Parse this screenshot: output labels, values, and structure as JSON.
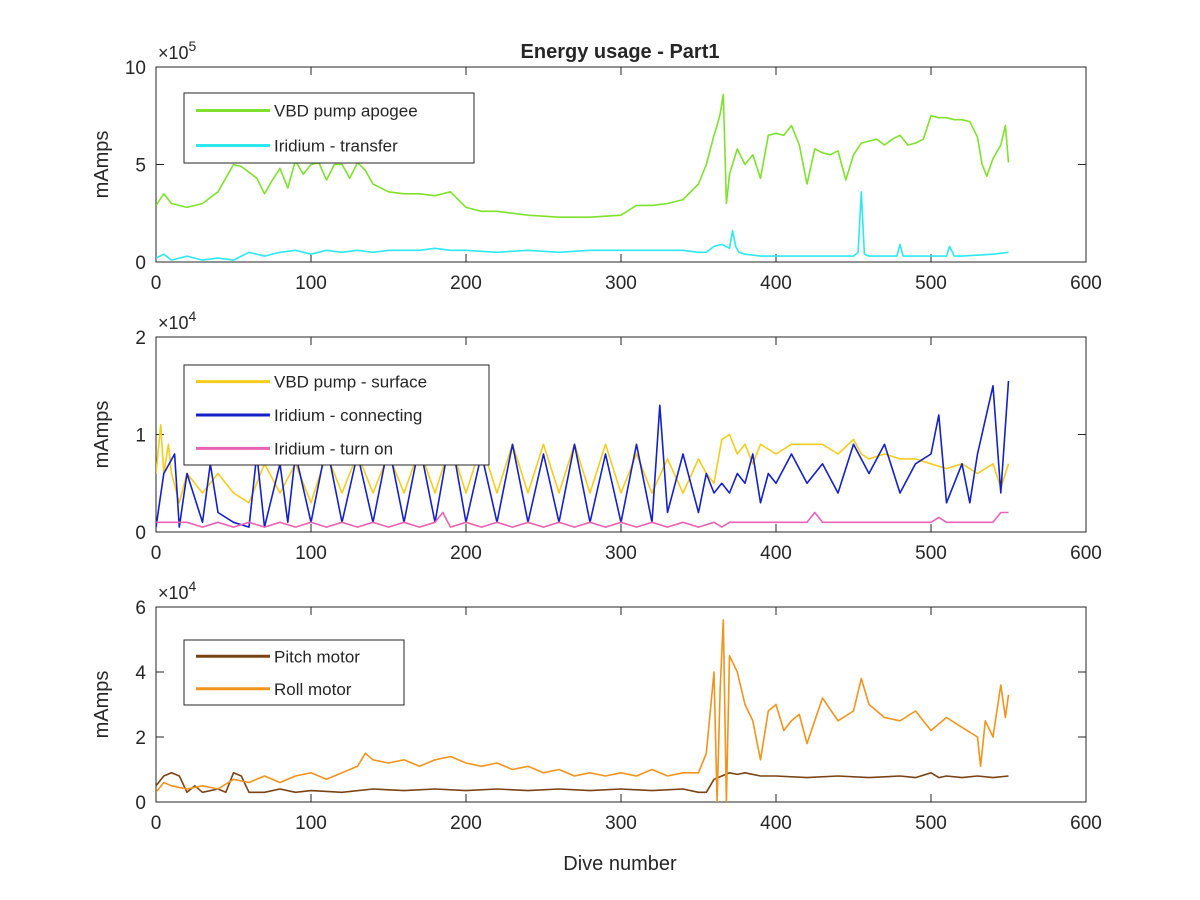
{
  "figure": {
    "title": "Energy usage - Part1",
    "xlabel": "Dive number"
  },
  "chart_data": [
    {
      "type": "line",
      "title": "Energy usage - Part1",
      "xlabel": "",
      "ylabel": "mAmps",
      "exponent_base": "×10",
      "exponent_power": "5",
      "scale": 100000,
      "xlim": [
        0,
        600
      ],
      "ylim": [
        0,
        10
      ],
      "xticks": [
        0,
        100,
        200,
        300,
        400,
        500,
        600
      ],
      "yticks": [
        0,
        5,
        10
      ],
      "legend_position": "top-left",
      "series": [
        {
          "name": "VBD pump apogee",
          "color": "#7fe12d",
          "x": [
            0,
            5,
            10,
            20,
            30,
            40,
            50,
            55,
            60,
            65,
            70,
            75,
            80,
            85,
            90,
            95,
            100,
            105,
            110,
            115,
            120,
            125,
            130,
            135,
            140,
            150,
            160,
            170,
            180,
            190,
            200,
            210,
            220,
            240,
            260,
            280,
            300,
            310,
            320,
            330,
            340,
            350,
            355,
            360,
            362,
            364,
            366,
            368,
            370,
            375,
            380,
            385,
            390,
            395,
            400,
            405,
            410,
            415,
            420,
            425,
            430,
            435,
            440,
            445,
            450,
            455,
            460,
            465,
            470,
            475,
            480,
            485,
            490,
            495,
            500,
            505,
            510,
            515,
            520,
            525,
            530,
            533,
            536,
            540,
            545,
            548,
            550
          ],
          "values": [
            2.9,
            3.5,
            3.0,
            2.8,
            3.0,
            3.6,
            5.0,
            4.9,
            4.6,
            4.3,
            3.5,
            4.2,
            4.8,
            3.8,
            5.2,
            4.5,
            5.0,
            5.1,
            4.2,
            5.0,
            5.0,
            4.3,
            5.1,
            4.7,
            4.0,
            3.6,
            3.5,
            3.5,
            3.4,
            3.6,
            2.8,
            2.6,
            2.6,
            2.4,
            2.3,
            2.3,
            2.4,
            2.9,
            2.9,
            3.0,
            3.2,
            4.0,
            5.0,
            6.5,
            7.0,
            7.6,
            8.6,
            3.0,
            4.5,
            5.8,
            5.0,
            5.5,
            4.3,
            6.5,
            6.6,
            6.5,
            7.0,
            6.0,
            4.0,
            5.8,
            5.6,
            5.5,
            5.7,
            4.2,
            5.5,
            6.1,
            6.2,
            6.3,
            6.0,
            6.3,
            6.5,
            6.0,
            6.1,
            6.3,
            7.5,
            7.4,
            7.4,
            7.3,
            7.3,
            7.2,
            6.4,
            5.0,
            4.4,
            5.3,
            6.0,
            7.0,
            5.1
          ]
        },
        {
          "name": "Iridium - transfer",
          "color": "#2ee8f0",
          "x": [
            0,
            5,
            10,
            20,
            30,
            40,
            50,
            60,
            70,
            80,
            90,
            100,
            110,
            120,
            130,
            140,
            150,
            160,
            170,
            180,
            190,
            200,
            220,
            240,
            260,
            280,
            300,
            320,
            340,
            350,
            355,
            360,
            365,
            370,
            372,
            374,
            376,
            380,
            390,
            400,
            420,
            440,
            450,
            453,
            455,
            457,
            460,
            470,
            478,
            480,
            482,
            490,
            500,
            510,
            512,
            515,
            520,
            540,
            550
          ],
          "values": [
            0.2,
            0.4,
            0.1,
            0.3,
            0.1,
            0.2,
            0.1,
            0.5,
            0.3,
            0.5,
            0.6,
            0.4,
            0.6,
            0.5,
            0.6,
            0.5,
            0.6,
            0.6,
            0.6,
            0.7,
            0.6,
            0.6,
            0.5,
            0.6,
            0.5,
            0.6,
            0.6,
            0.6,
            0.6,
            0.5,
            0.5,
            0.8,
            0.9,
            0.7,
            1.6,
            0.8,
            0.5,
            0.4,
            0.3,
            0.3,
            0.3,
            0.3,
            0.3,
            0.5,
            3.6,
            0.4,
            0.3,
            0.3,
            0.3,
            0.9,
            0.3,
            0.3,
            0.3,
            0.3,
            0.8,
            0.3,
            0.3,
            0.4,
            0.5
          ]
        }
      ]
    },
    {
      "type": "line",
      "title": "",
      "xlabel": "",
      "ylabel": "mAmps",
      "exponent_base": "×10",
      "exponent_power": "4",
      "scale": 10000,
      "xlim": [
        0,
        600
      ],
      "ylim": [
        0,
        2
      ],
      "xticks": [
        0,
        100,
        200,
        300,
        400,
        500,
        600
      ],
      "yticks": [
        0,
        1,
        2
      ],
      "legend_position": "top-left",
      "series": [
        {
          "name": "VBD pump - surface",
          "color": "#f5cc1e",
          "x": [
            0,
            3,
            5,
            8,
            10,
            15,
            20,
            30,
            40,
            50,
            60,
            70,
            80,
            90,
            100,
            110,
            120,
            130,
            140,
            150,
            160,
            170,
            180,
            190,
            200,
            210,
            220,
            230,
            240,
            250,
            260,
            270,
            280,
            290,
            300,
            310,
            320,
            330,
            340,
            350,
            355,
            360,
            365,
            370,
            375,
            380,
            385,
            390,
            400,
            410,
            420,
            430,
            440,
            450,
            455,
            460,
            470,
            480,
            490,
            500,
            510,
            520,
            530,
            540,
            545,
            550
          ],
          "values": [
            0.6,
            1.1,
            0.6,
            0.9,
            0.6,
            0.3,
            0.6,
            0.4,
            0.6,
            0.4,
            0.3,
            0.7,
            0.4,
            0.7,
            0.3,
            0.8,
            0.4,
            0.8,
            0.4,
            0.8,
            0.4,
            0.85,
            0.4,
            0.9,
            0.4,
            0.9,
            0.4,
            0.9,
            0.4,
            0.9,
            0.4,
            0.9,
            0.4,
            0.9,
            0.4,
            0.8,
            0.4,
            0.75,
            0.4,
            0.75,
            0.6,
            0.5,
            0.95,
            1.0,
            0.8,
            0.9,
            0.7,
            0.9,
            0.8,
            0.9,
            0.9,
            0.9,
            0.8,
            0.95,
            0.8,
            0.75,
            0.8,
            0.75,
            0.75,
            0.7,
            0.65,
            0.7,
            0.6,
            0.7,
            0.45,
            0.7
          ]
        },
        {
          "name": "Iridium - connecting",
          "color": "#1420c8",
          "x": [
            0,
            5,
            12,
            15,
            20,
            30,
            35,
            40,
            50,
            60,
            65,
            70,
            80,
            85,
            90,
            100,
            110,
            120,
            130,
            140,
            150,
            160,
            170,
            180,
            190,
            200,
            210,
            220,
            230,
            240,
            250,
            260,
            270,
            280,
            290,
            300,
            310,
            320,
            325,
            330,
            340,
            350,
            355,
            360,
            365,
            370,
            375,
            380,
            385,
            390,
            395,
            400,
            410,
            420,
            430,
            440,
            450,
            460,
            470,
            480,
            490,
            500,
            505,
            510,
            520,
            525,
            530,
            540,
            545,
            550
          ],
          "values": [
            0.05,
            0.6,
            0.8,
            0.05,
            0.6,
            0.1,
            0.7,
            0.2,
            0.1,
            0.05,
            0.8,
            0.05,
            0.7,
            0.1,
            0.8,
            0.1,
            0.9,
            0.1,
            0.8,
            0.1,
            0.9,
            0.1,
            0.9,
            0.1,
            1.0,
            0.1,
            0.8,
            0.1,
            0.9,
            0.1,
            0.8,
            0.1,
            0.9,
            0.1,
            0.8,
            0.1,
            0.9,
            0.1,
            1.3,
            0.2,
            0.8,
            0.2,
            0.6,
            0.4,
            0.5,
            0.4,
            0.6,
            0.5,
            0.8,
            0.3,
            0.6,
            0.5,
            0.8,
            0.5,
            0.7,
            0.4,
            0.9,
            0.6,
            0.9,
            0.4,
            0.7,
            0.8,
            1.2,
            0.3,
            0.7,
            0.3,
            0.8,
            1.5,
            0.4,
            1.55
          ]
        },
        {
          "name": "Iridium - turn on",
          "color": "#e963b4",
          "x": [
            0,
            10,
            20,
            30,
            40,
            50,
            60,
            70,
            80,
            90,
            100,
            110,
            120,
            130,
            140,
            150,
            160,
            170,
            180,
            185,
            190,
            200,
            210,
            220,
            230,
            240,
            250,
            260,
            270,
            280,
            290,
            300,
            310,
            320,
            330,
            340,
            350,
            360,
            365,
            370,
            380,
            400,
            420,
            425,
            430,
            450,
            470,
            500,
            505,
            510,
            540,
            545,
            550
          ],
          "values": [
            0.1,
            0.1,
            0.1,
            0.05,
            0.1,
            0.05,
            0.1,
            0.05,
            0.1,
            0.05,
            0.1,
            0.05,
            0.1,
            0.05,
            0.1,
            0.05,
            0.1,
            0.05,
            0.1,
            0.2,
            0.05,
            0.1,
            0.05,
            0.1,
            0.05,
            0.1,
            0.05,
            0.1,
            0.05,
            0.1,
            0.05,
            0.1,
            0.05,
            0.1,
            0.05,
            0.1,
            0.05,
            0.1,
            0.05,
            0.1,
            0.1,
            0.1,
            0.1,
            0.2,
            0.1,
            0.1,
            0.1,
            0.1,
            0.15,
            0.1,
            0.1,
            0.2,
            0.2
          ]
        }
      ]
    },
    {
      "type": "line",
      "title": "",
      "xlabel": "Dive number",
      "ylabel": "mAmps",
      "exponent_base": "×10",
      "exponent_power": "4",
      "scale": 10000,
      "xlim": [
        0,
        600
      ],
      "ylim": [
        0,
        6
      ],
      "xticks": [
        0,
        100,
        200,
        300,
        400,
        500,
        600
      ],
      "yticks": [
        0,
        2,
        4,
        6
      ],
      "legend_position": "top-left",
      "series": [
        {
          "name": "Pitch motor",
          "color": "#7a4316",
          "x": [
            0,
            5,
            10,
            15,
            20,
            25,
            30,
            40,
            45,
            50,
            55,
            60,
            70,
            80,
            90,
            100,
            120,
            140,
            160,
            180,
            200,
            220,
            240,
            260,
            280,
            300,
            320,
            340,
            350,
            355,
            360,
            365,
            370,
            375,
            380,
            390,
            400,
            420,
            440,
            460,
            480,
            490,
            500,
            505,
            510,
            520,
            530,
            540,
            550
          ],
          "values": [
            0.5,
            0.8,
            0.9,
            0.8,
            0.3,
            0.5,
            0.3,
            0.4,
            0.3,
            0.9,
            0.8,
            0.3,
            0.3,
            0.4,
            0.3,
            0.35,
            0.3,
            0.4,
            0.35,
            0.4,
            0.35,
            0.4,
            0.35,
            0.4,
            0.35,
            0.4,
            0.35,
            0.4,
            0.3,
            0.3,
            0.7,
            0.8,
            0.9,
            0.85,
            0.9,
            0.8,
            0.8,
            0.75,
            0.8,
            0.75,
            0.8,
            0.75,
            0.9,
            0.75,
            0.8,
            0.75,
            0.8,
            0.75,
            0.8
          ]
        },
        {
          "name": "Roll motor",
          "color": "#f0941d",
          "x": [
            0,
            5,
            10,
            20,
            30,
            40,
            50,
            60,
            70,
            80,
            90,
            100,
            110,
            120,
            130,
            135,
            140,
            150,
            160,
            170,
            180,
            190,
            200,
            210,
            220,
            230,
            240,
            250,
            260,
            270,
            280,
            290,
            300,
            310,
            320,
            330,
            340,
            350,
            355,
            360,
            362,
            364,
            366,
            368,
            370,
            375,
            380,
            385,
            390,
            395,
            400,
            405,
            410,
            415,
            420,
            430,
            440,
            450,
            455,
            460,
            470,
            480,
            490,
            500,
            510,
            520,
            530,
            532,
            535,
            540,
            545,
            548,
            550
          ],
          "values": [
            0.3,
            0.6,
            0.5,
            0.4,
            0.5,
            0.4,
            0.7,
            0.6,
            0.8,
            0.6,
            0.8,
            0.9,
            0.7,
            0.9,
            1.1,
            1.5,
            1.3,
            1.2,
            1.3,
            1.1,
            1.3,
            1.4,
            1.2,
            1.1,
            1.2,
            1.0,
            1.1,
            0.9,
            1.0,
            0.8,
            0.9,
            0.8,
            0.9,
            0.8,
            1.0,
            0.8,
            0.9,
            0.9,
            1.5,
            4.0,
            0.0,
            3.5,
            5.6,
            0.0,
            4.5,
            4.0,
            3.0,
            2.5,
            1.3,
            2.8,
            3.0,
            2.2,
            2.5,
            2.7,
            1.8,
            3.2,
            2.5,
            2.8,
            3.8,
            3.0,
            2.6,
            2.5,
            2.8,
            2.2,
            2.6,
            2.3,
            2.0,
            1.1,
            2.5,
            2.0,
            3.6,
            2.6,
            3.3
          ]
        }
      ]
    }
  ]
}
